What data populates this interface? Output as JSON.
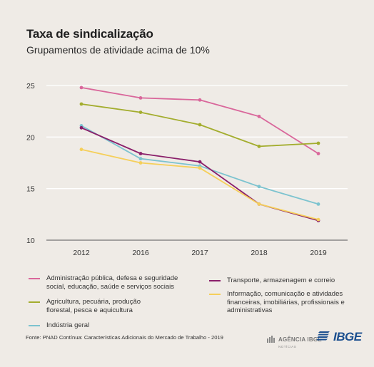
{
  "header": {
    "title": "Taxa de sindicalização",
    "subtitle": "Grupamentos de atividade acima de 10%"
  },
  "chart_data": {
    "type": "line",
    "title": "Taxa de sindicalização",
    "subtitle": "Grupamentos de atividade acima de 10%",
    "xlabel": "",
    "ylabel": "",
    "categories": [
      "2012",
      "2016",
      "2017",
      "2018",
      "2019"
    ],
    "ylim": [
      10,
      25
    ],
    "yticks": [
      10,
      15,
      20,
      25
    ],
    "grid": true,
    "legend_position": "bottom",
    "series": [
      {
        "name": "Administração pública, defesa e seguridade\nsocial, educação, saúde e serviços sociais",
        "color": "#d9679b",
        "values": [
          24.8,
          23.8,
          23.6,
          22.0,
          18.4
        ]
      },
      {
        "name": "Agricultura, pecuária, produção\nflorestal, pesca e aquicultura",
        "color": "#a3ad2e",
        "values": [
          23.2,
          22.4,
          21.2,
          19.1,
          19.4
        ]
      },
      {
        "name": "Indústria geral",
        "color": "#7cc3cf",
        "values": [
          21.1,
          17.9,
          17.2,
          15.2,
          13.5
        ]
      },
      {
        "name": "Transporte, armazenagem e correio",
        "color": "#8a1f6a",
        "values": [
          20.9,
          18.4,
          17.6,
          13.5,
          11.9
        ]
      },
      {
        "name": "Informação, comunicação e atividades\nfinanceiras, imobiliárias, profissionais e\nadministrativas",
        "color": "#f5cf5a",
        "values": [
          18.8,
          17.5,
          17.0,
          13.5,
          12.0
        ]
      }
    ]
  },
  "legend": {
    "items": [
      {
        "label": "Administração pública, defesa e seguridade\nsocial, educação, saúde e serviços sociais",
        "color": "#d9679b"
      },
      {
        "label": "Transporte, armazenagem e correio",
        "color": "#8a1f6a"
      },
      {
        "label": "Agricultura, pecuária, produção\nflorestal, pesca e aquicultura",
        "color": "#a3ad2e"
      },
      {
        "label": "Informação, comunicação e atividades\nfinanceiras, imobiliárias, profissionais e\nadministrativas",
        "color": "#f5cf5a"
      },
      {
        "label": "Indústria geral",
        "color": "#7cc3cf"
      }
    ]
  },
  "footer": {
    "source": "Fonte: PNAD Contínua: Características Adicionais do Mercado de Trabalho - 2019",
    "agency": "AGÊNCIA IBGE",
    "agency_sub": "NOTÍCIAS",
    "logo": "IBGE"
  }
}
